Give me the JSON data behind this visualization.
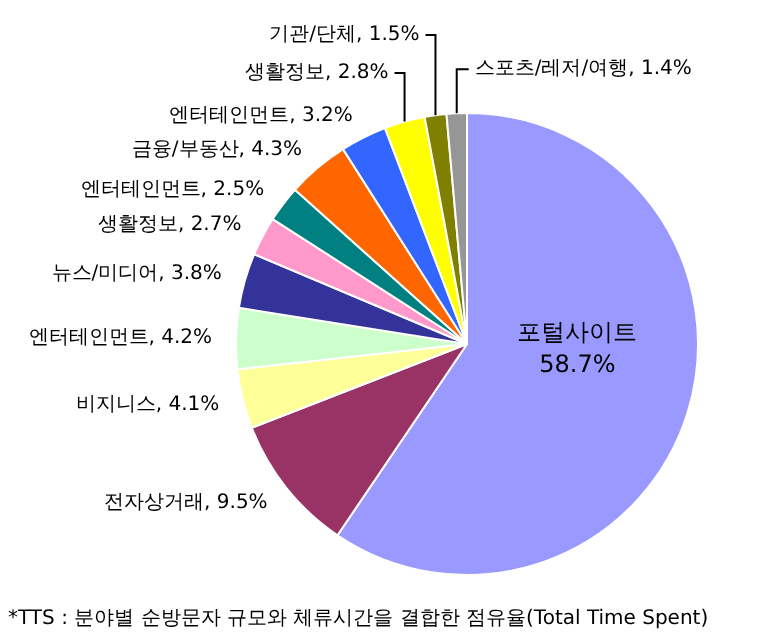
{
  "chart_data": {
    "type": "pie",
    "categories": [
      "포털사이트",
      "전자상거래",
      "비지니스",
      "엔터테인먼트",
      "뉴스/미디어",
      "생활정보",
      "엔터테인먼트",
      "금융/부동산",
      "엔터테인먼트",
      "생활정보",
      "기관/단체",
      "스포츠/레저/여행"
    ],
    "values": [
      58.7,
      9.5,
      4.1,
      4.2,
      3.8,
      2.7,
      2.5,
      4.3,
      3.2,
      2.8,
      1.5,
      1.4
    ],
    "value_labels": [
      "58.7%",
      "9.5%",
      "4.1%",
      "4.2%",
      "3.8%",
      "2.7%",
      "2.5%",
      "4.3%",
      "3.2%",
      "2.8%",
      "1.5%",
      "1.4%"
    ],
    "colors": [
      "#9999ff",
      "#993366",
      "#ffff99",
      "#ccffcc",
      "#333399",
      "#ff99cc",
      "#008080",
      "#ff6600",
      "#3366ff",
      "#ffff00",
      "#808000",
      "#969696"
    ],
    "legend": false,
    "annotations": [
      "*TTS : 분야별 순방문자 규모와 체류시간을 결합한 점유율(Total Time Spent)"
    ]
  }
}
